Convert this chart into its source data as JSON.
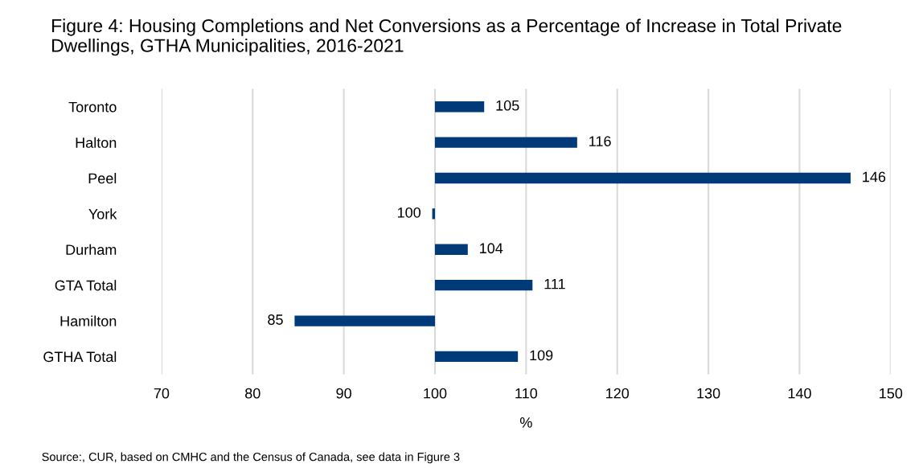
{
  "chart_data": {
    "type": "bar",
    "orientation": "horizontal",
    "title": "Figure 4: Housing Completions and Net Conversions as a Percentage of Increase in Total Private Dwellings, GTHA Municipalities, 2016-2021",
    "categories": [
      "Toronto",
      "Halton",
      "Peel",
      "York",
      "Durham",
      "GTA Total",
      "Hamilton",
      "GTHA Total"
    ],
    "base": [
      100,
      100,
      100,
      100,
      100,
      100,
      100,
      100
    ],
    "values": [
      5.4,
      15.6,
      45.6,
      -0.3,
      3.6,
      10.7,
      -15.4,
      9.1
    ],
    "value_labels": [
      "105",
      "116",
      "146",
      "100",
      "104",
      "111",
      "85",
      "109"
    ],
    "color": "#003a78",
    "xlim": [
      70,
      150
    ],
    "xticks": [
      70,
      80,
      90,
      100,
      110,
      120,
      130,
      140,
      150
    ],
    "xlabel": "%",
    "grid": "x",
    "annotations": [
      "Source:, CUR, based on CMHC and the Census of Canada, see data in Figure 3"
    ]
  }
}
